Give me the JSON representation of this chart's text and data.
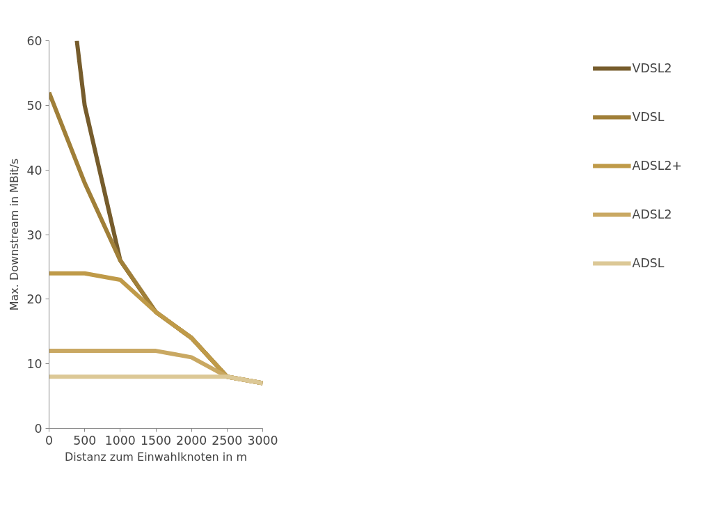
{
  "chart_data": {
    "type": "line",
    "xlabel": "Distanz zum Einwahlknoten in m",
    "ylabel": "Max. Downstream in MBit/s",
    "x": [
      0,
      500,
      1000,
      1500,
      2000,
      2500,
      3000
    ],
    "series": [
      {
        "name": "VDSL2",
        "color": "#765c2c",
        "x": [
          390,
          500,
          1000,
          1500,
          2000,
          2500,
          3000
        ],
        "values": [
          60,
          50,
          26,
          18,
          14,
          8,
          7
        ]
      },
      {
        "name": "VDSL",
        "color": "#a07f38",
        "values": [
          52,
          38,
          26,
          18,
          14,
          8,
          7
        ]
      },
      {
        "name": "ADSL2+",
        "color": "#bf9a48",
        "values": [
          24,
          24,
          23,
          18,
          14,
          8,
          7
        ]
      },
      {
        "name": "ADSL2",
        "color": "#c9a862",
        "values": [
          12,
          12,
          12,
          12,
          11,
          8,
          7
        ]
      },
      {
        "name": "ADSL",
        "color": "#dcc896",
        "values": [
          8,
          8,
          8,
          8,
          8,
          8,
          7
        ]
      }
    ],
    "xlim": [
      0,
      3000
    ],
    "xticks": [
      0,
      500,
      1000,
      1500,
      2000,
      2500,
      3000
    ],
    "ylim": [
      0,
      60
    ],
    "yticks": [
      0,
      10,
      20,
      30,
      40,
      50,
      60
    ],
    "grid": false,
    "legend": "right",
    "marker": "none",
    "line_style": "solid"
  }
}
